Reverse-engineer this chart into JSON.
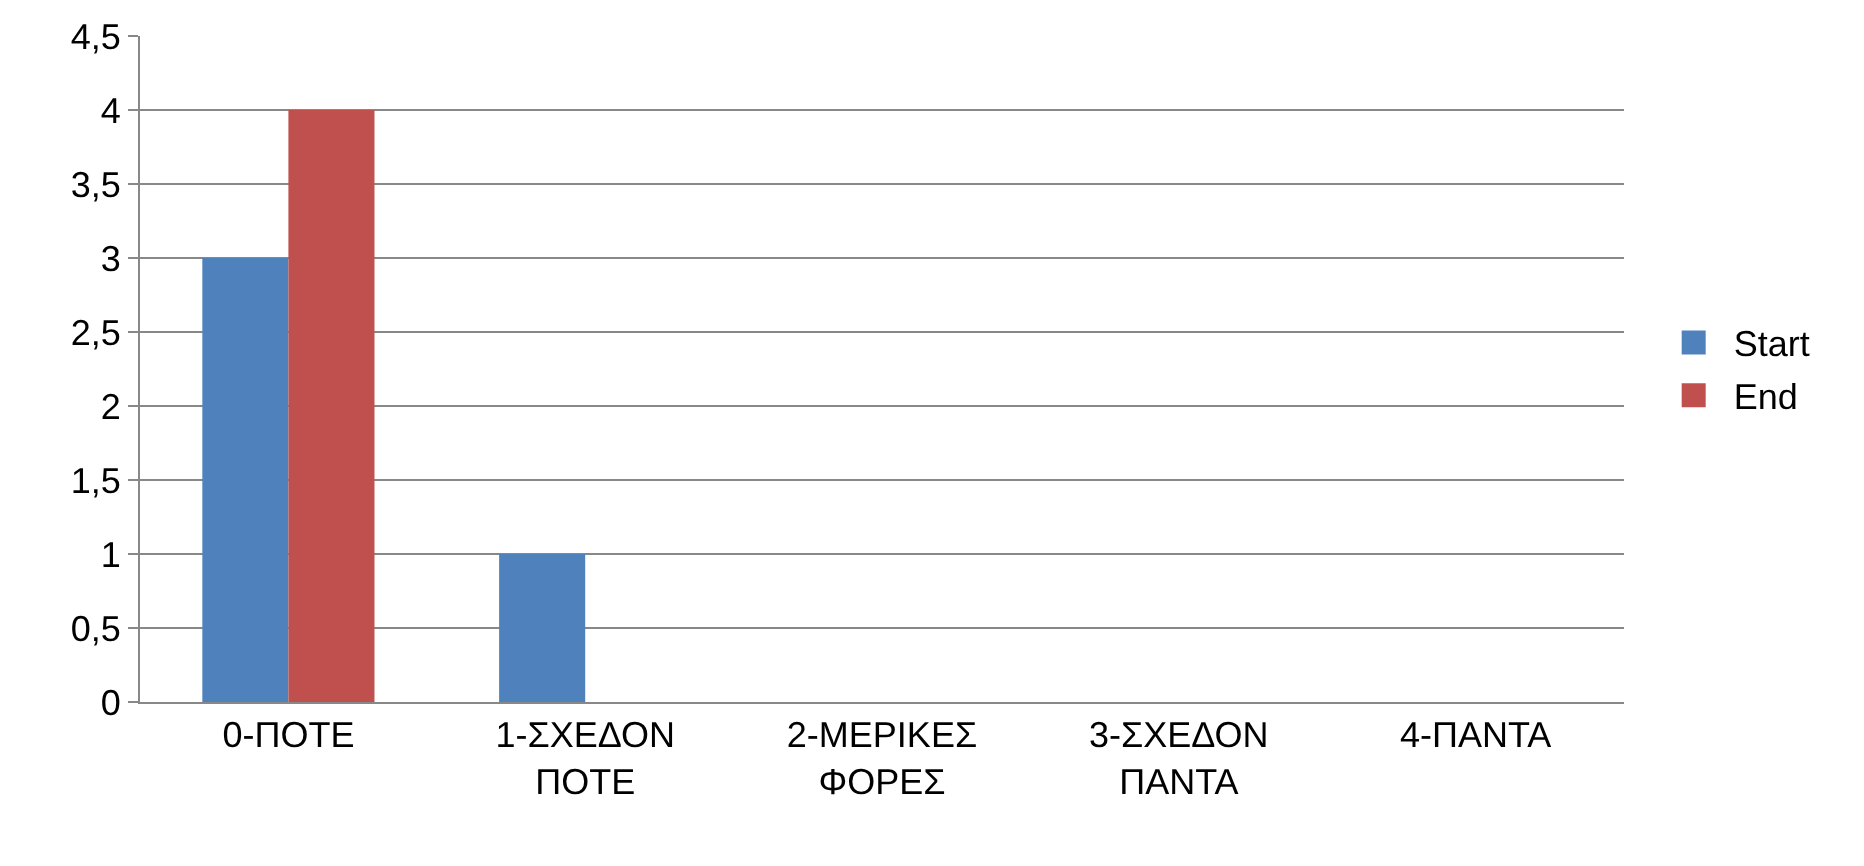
{
  "chart_data": {
    "type": "bar",
    "categories": [
      "0-ΠΟΤΕ",
      "1-ΣΧΕΔΟΝ ΠΟΤΕ",
      "2-ΜΕΡΙΚΕΣ ΦΟΡΕΣ",
      "3-ΣΧΕΔΟΝ ΠΑΝΤΑ",
      "4-ΠΑΝΤΑ"
    ],
    "series": [
      {
        "name": "Start",
        "color": "#4f81bd",
        "values": [
          3,
          1,
          0,
          0,
          0
        ]
      },
      {
        "name": "End",
        "color": "#c0504d",
        "values": [
          4,
          0,
          0,
          0,
          0
        ]
      }
    ],
    "ylim": [
      0,
      4.5
    ],
    "yticks": [
      0,
      {
        "value": 0.5,
        "label": "0,5"
      },
      1,
      {
        "value": 1.5,
        "label": "1,5"
      },
      2,
      {
        "value": 2.5,
        "label": "2,5"
      },
      3,
      {
        "value": 3.5,
        "label": "3,5"
      },
      4,
      {
        "value": 4.5,
        "label": "4,5"
      }
    ],
    "grid": "y",
    "legend": "right"
  }
}
